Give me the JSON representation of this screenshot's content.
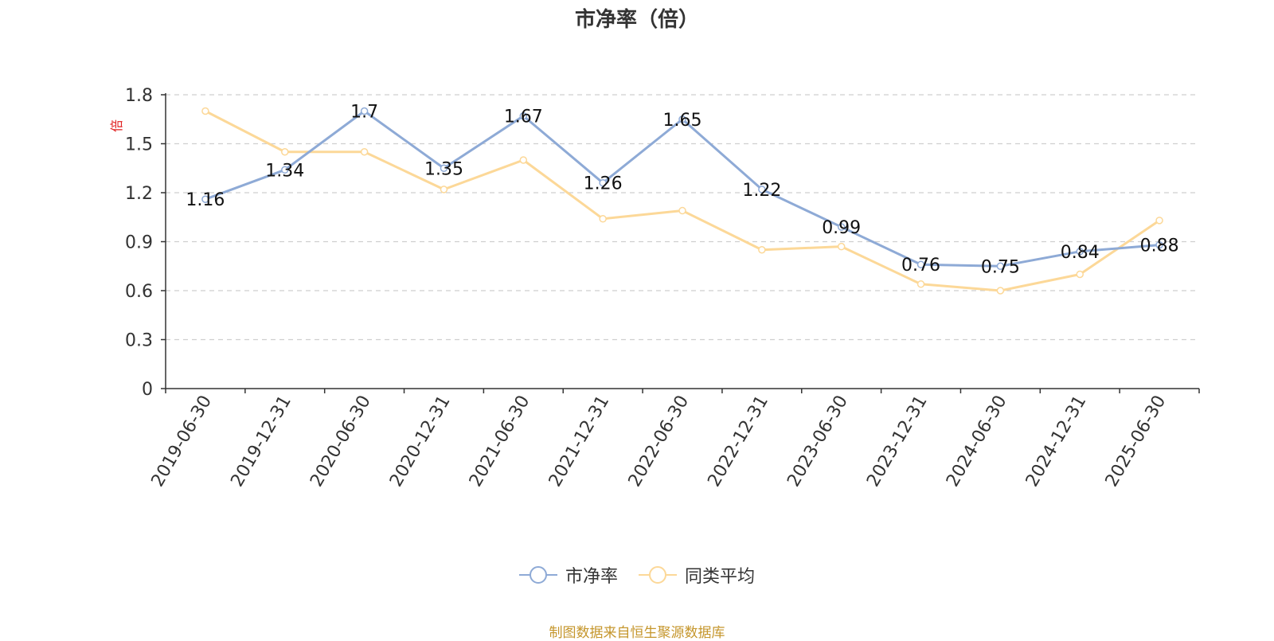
{
  "chart_data": {
    "type": "line",
    "title": "市净率（倍）",
    "ylabel": "倍",
    "xlabel": "",
    "ylim": [
      0,
      1.8
    ],
    "yticks": [
      "0",
      "0.3",
      "0.6",
      "0.9",
      "1.2",
      "1.5",
      "1.8"
    ],
    "categories": [
      "2019-06-30",
      "2019-12-31",
      "2020-06-30",
      "2020-12-31",
      "2021-06-30",
      "2021-12-31",
      "2022-06-30",
      "2022-12-31",
      "2023-06-30",
      "2023-12-31",
      "2024-06-30",
      "2024-12-31",
      "2025-06-30"
    ],
    "series": [
      {
        "name": "市净率",
        "color": "#8eaad6",
        "values": [
          1.16,
          1.34,
          1.7,
          1.35,
          1.67,
          1.26,
          1.65,
          1.22,
          0.99,
          0.76,
          0.75,
          0.84,
          0.88
        ],
        "labels": [
          "1.16",
          "1.34",
          "1.7",
          "1.35",
          "1.67",
          "1.26",
          "1.65",
          "1.22",
          "0.99",
          "0.76",
          "0.75",
          "0.84",
          "0.88"
        ]
      },
      {
        "name": "同类平均",
        "color": "#fcd898",
        "values": [
          1.7,
          1.45,
          1.45,
          1.22,
          1.4,
          1.04,
          1.09,
          0.85,
          0.87,
          0.64,
          0.6,
          0.7,
          1.03
        ]
      }
    ],
    "grid": true,
    "legend_position": "bottom-center"
  },
  "source": "制图数据来自恒生聚源数据库"
}
